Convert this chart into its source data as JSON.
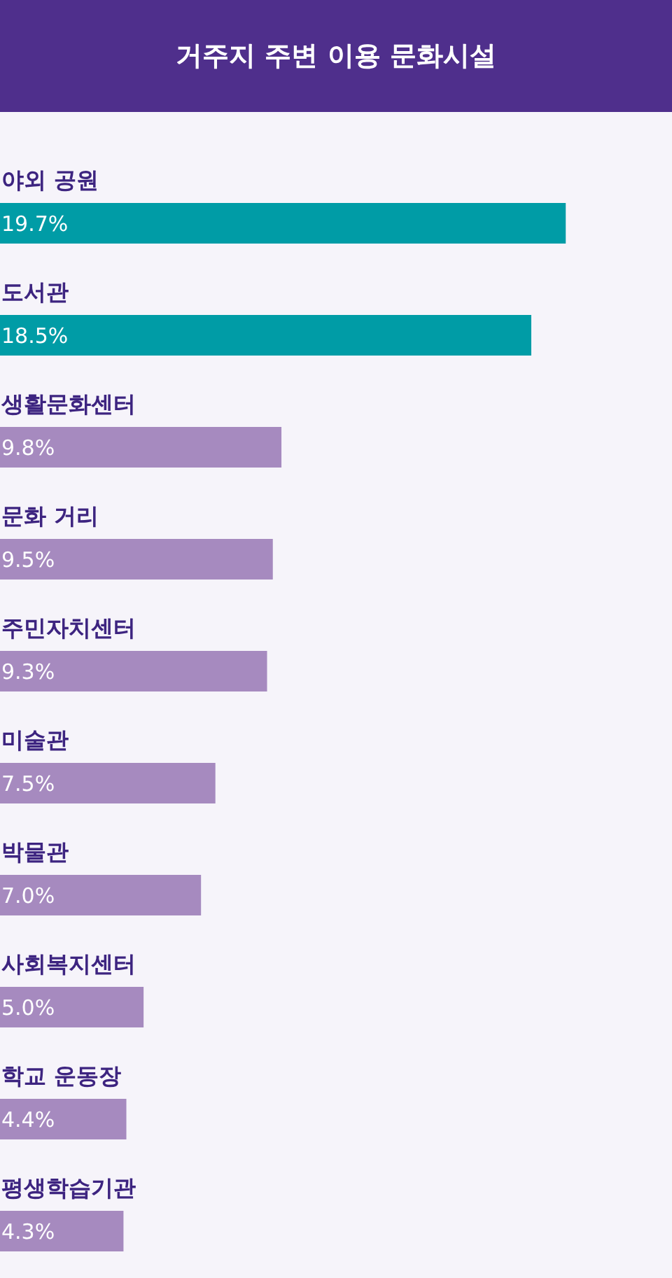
{
  "chart_data": {
    "type": "bar",
    "orientation": "horizontal",
    "title": "거주지 주변 이용 문화시설",
    "categories": [
      "야외 공원",
      "도서관",
      "생활문화센터",
      "문화 거리",
      "주민자치센터",
      "미술관",
      "박물관",
      "사회복지센터",
      "학교 운동장",
      "평생학습기관"
    ],
    "values": [
      19.7,
      18.5,
      9.8,
      9.5,
      9.3,
      7.5,
      7.0,
      5.0,
      4.4,
      4.3
    ],
    "colors": [
      "#009ca6",
      "#009ca6",
      "#a68abf",
      "#a68abf",
      "#a68abf",
      "#a68abf",
      "#a68abf",
      "#a68abf",
      "#a68abf",
      "#a68abf"
    ],
    "value_labels": [
      "19.7%",
      "18.5%",
      "9.8%",
      "9.5%",
      "9.3%",
      "7.5%",
      "7.0%",
      "5.0%",
      "4.4%",
      "4.3%"
    ],
    "xlim": [
      0,
      23.4
    ]
  }
}
